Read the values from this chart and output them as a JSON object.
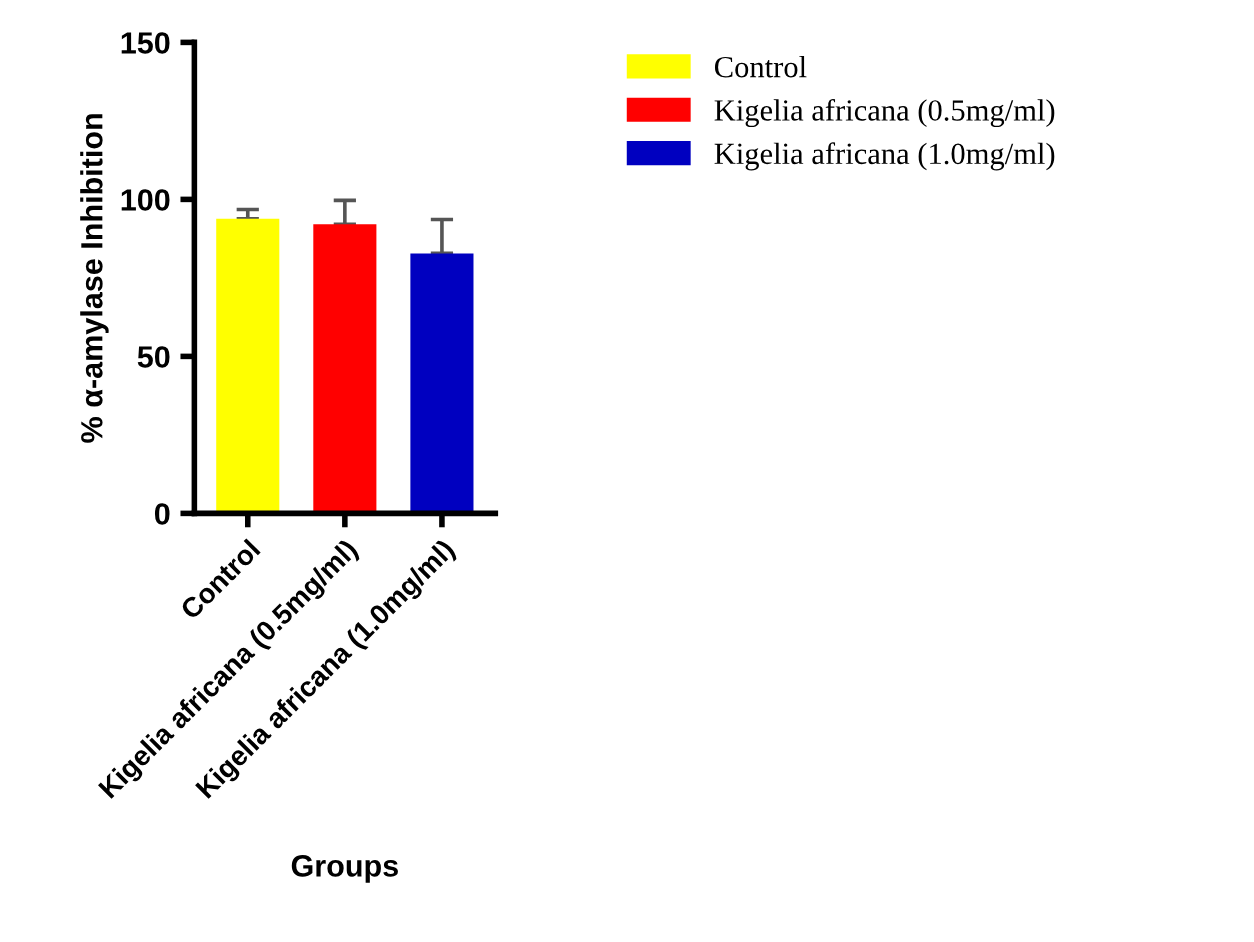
{
  "chart_data": {
    "type": "bar",
    "xlabel": "Groups",
    "ylabel": "% α-amylase Inhibition",
    "categories": [
      "Control",
      "Kigelia africana (0.5mg/ml)",
      "Kigelia africana (1.0mg/ml)"
    ],
    "series": [
      {
        "name": "Control",
        "color": "#ffff00",
        "values": [
          93.8,
          null,
          null
        ],
        "errors": [
          3.0,
          null,
          null
        ]
      },
      {
        "name": "Kigelia africana (0.5mg/ml)",
        "color": "#ff0000",
        "values": [
          null,
          92.1,
          null
        ],
        "errors": [
          null,
          7.6,
          null
        ]
      },
      {
        "name": "Kigelia africana (1.0mg/ml)",
        "color": "#0000c0",
        "values": [
          null,
          null,
          82.8
        ],
        "errors": [
          null,
          null,
          10.8
        ]
      }
    ],
    "ylim": [
      0,
      150
    ],
    "yticks": [
      0,
      50,
      100,
      150
    ],
    "grid": false,
    "legend": "top right"
  }
}
